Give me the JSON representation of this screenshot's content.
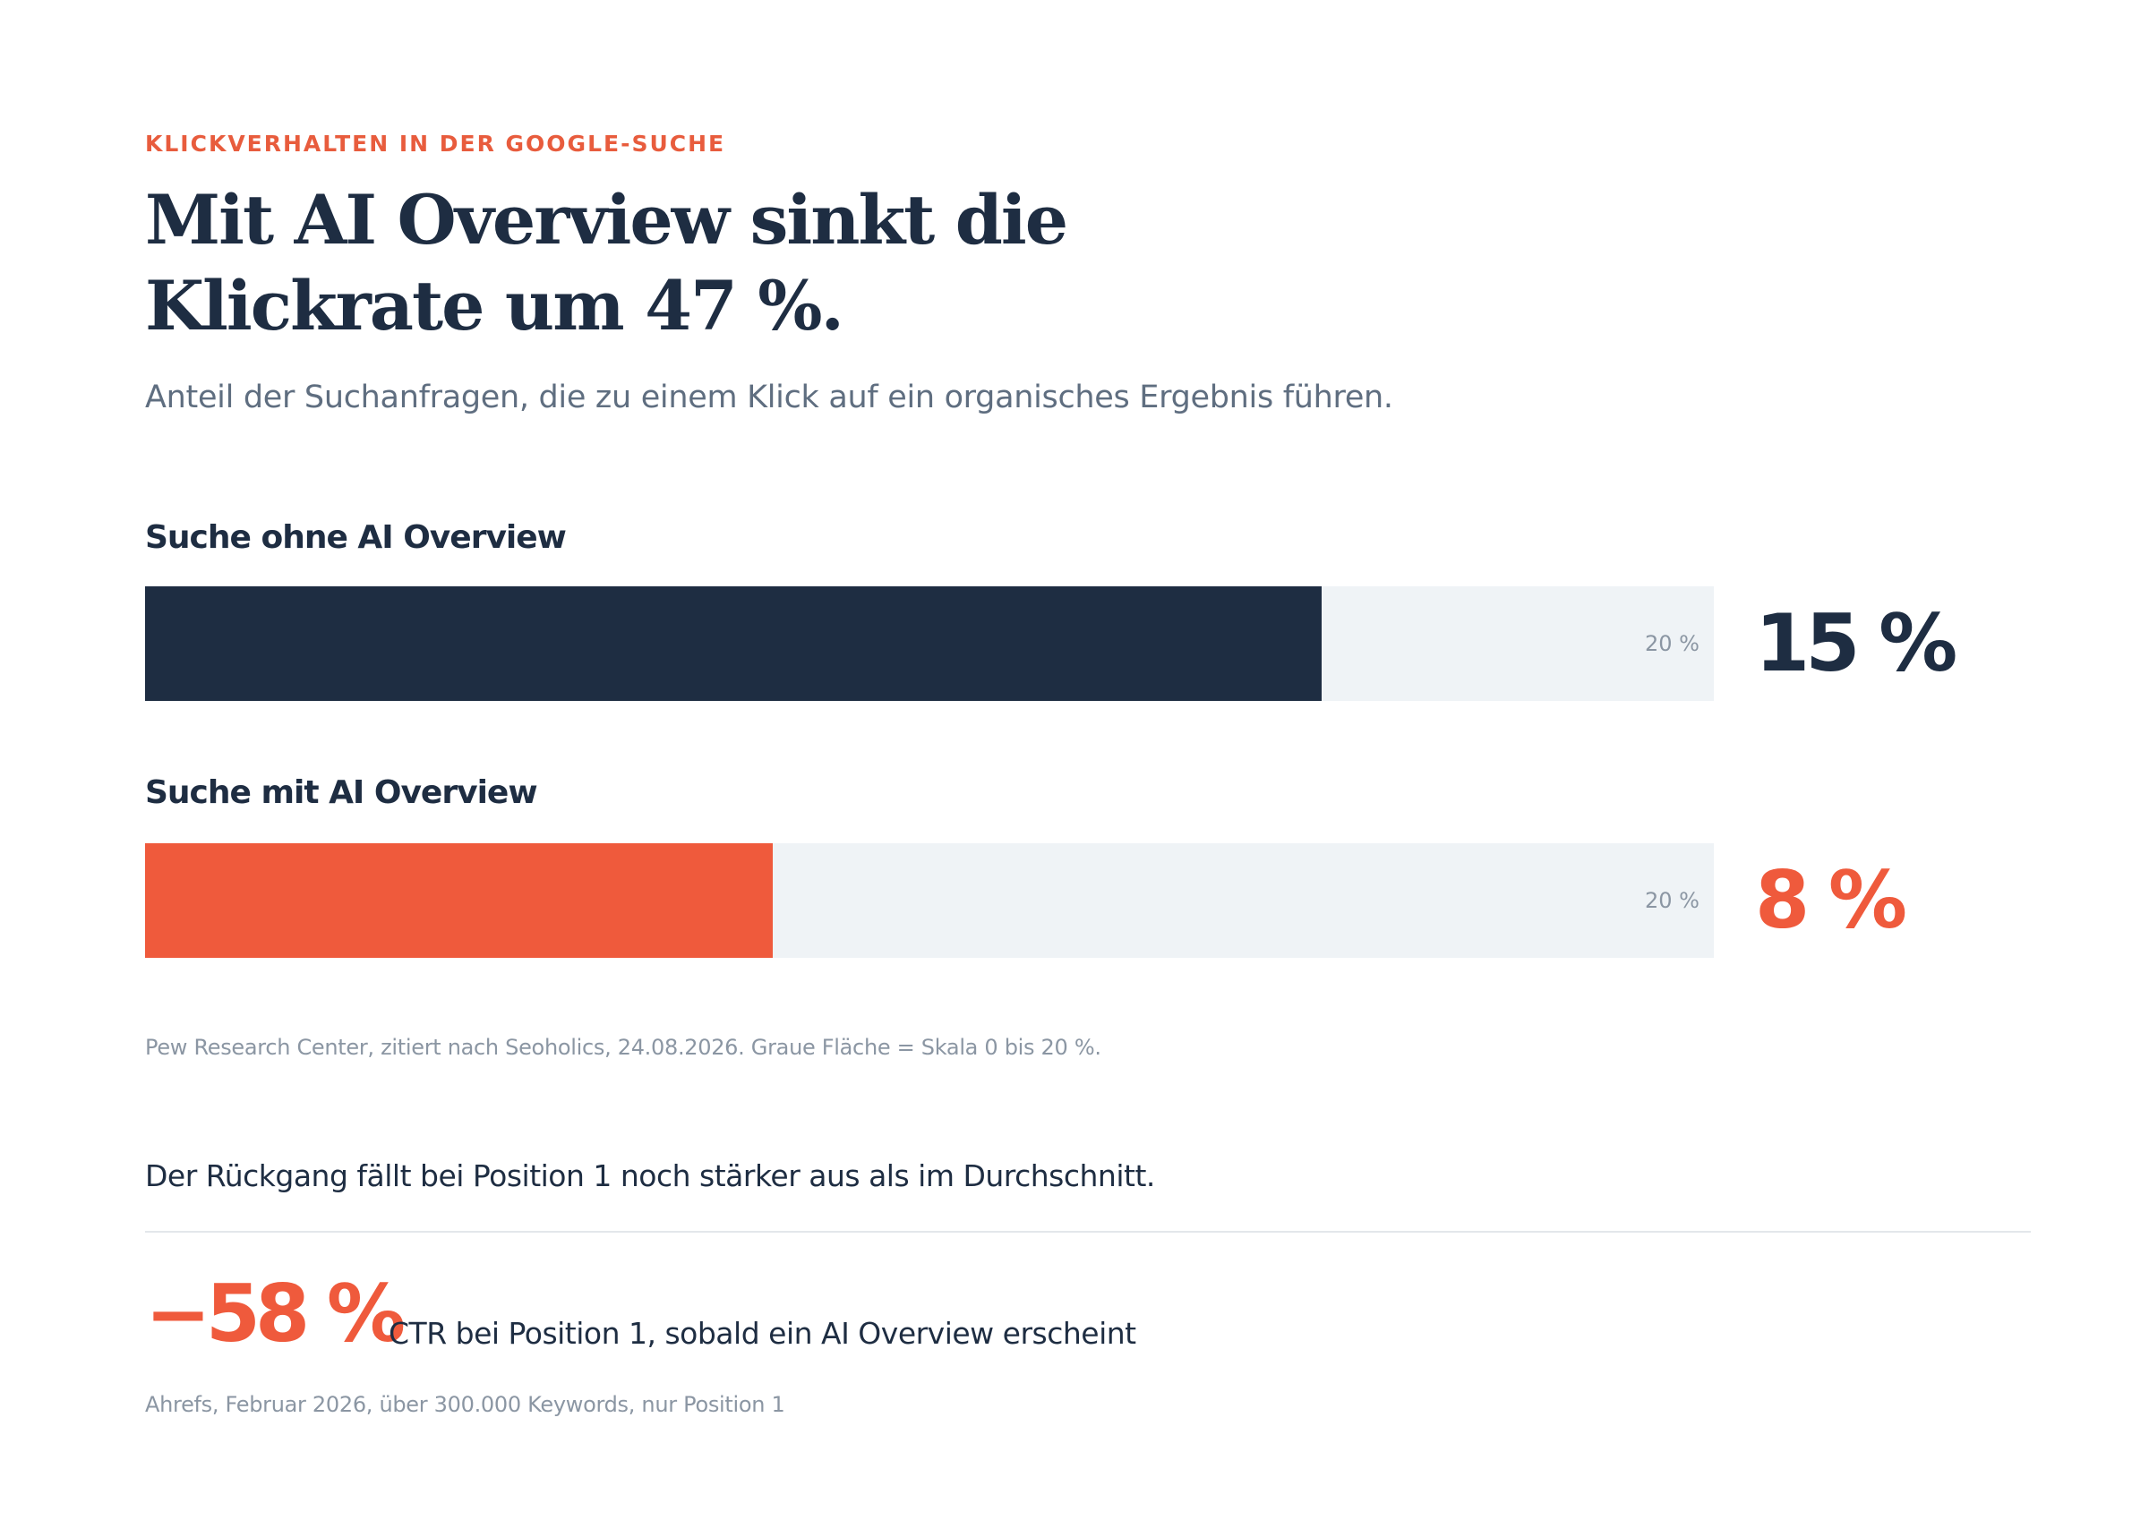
{
  "eyebrow": "KLICKVERHALTEN IN DER GOOGLE-SUCHE",
  "headline": "Mit AI Overview sinkt die Klickrate um 47 %.",
  "subtitle": "Anteil der Suchanfragen, die zu einem Klick auf ein organisches Ergebnis führen.",
  "chart_data": {
    "type": "bar",
    "orientation": "horizontal",
    "scale_max": 20,
    "scale_label": "20 %",
    "bars": [
      {
        "label": "Suche ohne AI Overview",
        "value": 15,
        "display": "15 %",
        "color": "#1e2d42"
      },
      {
        "label": "Suche mit AI Overview",
        "value": 8,
        "display": "8 %",
        "color": "#ef5a3c"
      }
    ],
    "source": "Pew Research Center, zitiert nach Seoholics, 24.08.2026. Graue Fläche = Skala 0 bis 20 %."
  },
  "note": "Der Rückgang fällt bei Position 1 noch stärker aus als im Durchschnitt.",
  "stat": {
    "value": "−58 %",
    "description": "CTR bei Position 1, sobald ein AI Overview erscheint",
    "source": "Ahrefs, Februar 2026, über 300.000 Keywords, nur Position 1"
  },
  "colors": {
    "accent": "#ef5a3c",
    "navy": "#1e2d42",
    "track": "#eff3f6",
    "muted": "#8b96a3"
  }
}
